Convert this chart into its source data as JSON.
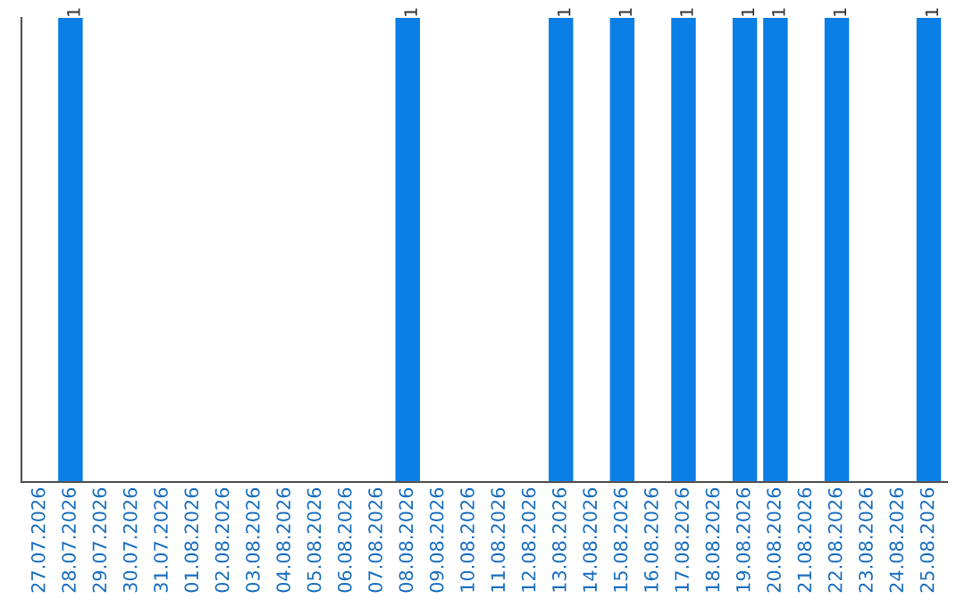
{
  "chart_data": {
    "type": "bar",
    "categories": [
      "27.07.2026",
      "28.07.2026",
      "29.07.2026",
      "30.07.2026",
      "31.07.2026",
      "01.08.2026",
      "02.08.2026",
      "03.08.2026",
      "04.08.2026",
      "05.08.2026",
      "06.08.2026",
      "07.08.2026",
      "08.08.2026",
      "09.08.2026",
      "10.08.2026",
      "11.08.2026",
      "12.08.2026",
      "13.08.2026",
      "14.08.2026",
      "15.08.2026",
      "16.08.2026",
      "17.08.2026",
      "18.08.2026",
      "19.08.2026",
      "20.08.2026",
      "21.08.2026",
      "22.08.2026",
      "23.08.2026",
      "24.08.2026",
      "25.08.2026"
    ],
    "values": [
      0,
      1,
      0,
      0,
      0,
      0,
      0,
      0,
      0,
      0,
      0,
      0,
      1,
      0,
      0,
      0,
      0,
      1,
      0,
      1,
      0,
      1,
      0,
      1,
      1,
      0,
      1,
      0,
      0,
      1
    ],
    "value_labels": [
      null,
      "1",
      null,
      null,
      null,
      null,
      null,
      null,
      null,
      null,
      null,
      null,
      "1",
      null,
      null,
      null,
      null,
      "1",
      null,
      "1",
      null,
      "1",
      null,
      "1",
      "1",
      null,
      "1",
      null,
      null,
      "1"
    ],
    "color": "#0a7fe6",
    "ylim": [
      0,
      1
    ],
    "tick_labels": "x",
    "grid": false,
    "legend": false
  }
}
